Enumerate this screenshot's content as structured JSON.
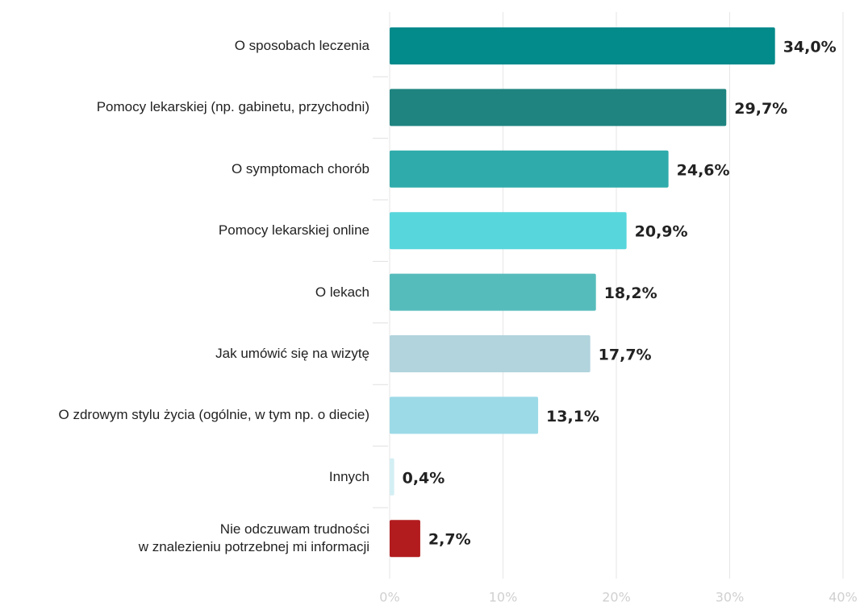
{
  "chart_data": {
    "type": "bar",
    "orientation": "horizontal",
    "categories": [
      "O sposobach leczenia",
      "Pomocy lekarskiej (np. gabinetu, przychodni)",
      "O symptomach chorób",
      "Pomocy lekarskiej online",
      "O lekach",
      "Jak umówić się na wizytę",
      "O zdrowym stylu życia (ogólnie, w tym np. o diecie)",
      "Innych",
      "Nie odczuwam trudności\nw znalezieniu potrzebnej mi informacji"
    ],
    "values": [
      34.0,
      29.7,
      24.6,
      20.9,
      18.2,
      17.7,
      13.1,
      0.4,
      2.7
    ],
    "value_labels": [
      "34,0%",
      "29,7%",
      "24,6%",
      "20,9%",
      "18,2%",
      "17,7%",
      "13,1%",
      "0,4%",
      "2,7%"
    ],
    "colors": [
      "#038a8b",
      "#1f8480",
      "#2fabab",
      "#57d6dc",
      "#56bcbb",
      "#b1d4dd",
      "#9cdae7",
      "#d3eff4",
      "#b21c1e"
    ],
    "xlim": [
      0,
      40
    ],
    "xticks": [
      {
        "value": 0,
        "label": "0%"
      },
      {
        "value": 10,
        "label": "10%"
      },
      {
        "value": 20,
        "label": "20%"
      },
      {
        "value": 30,
        "label": "30%"
      },
      {
        "value": 40,
        "label": "40%"
      }
    ],
    "grid": true
  }
}
